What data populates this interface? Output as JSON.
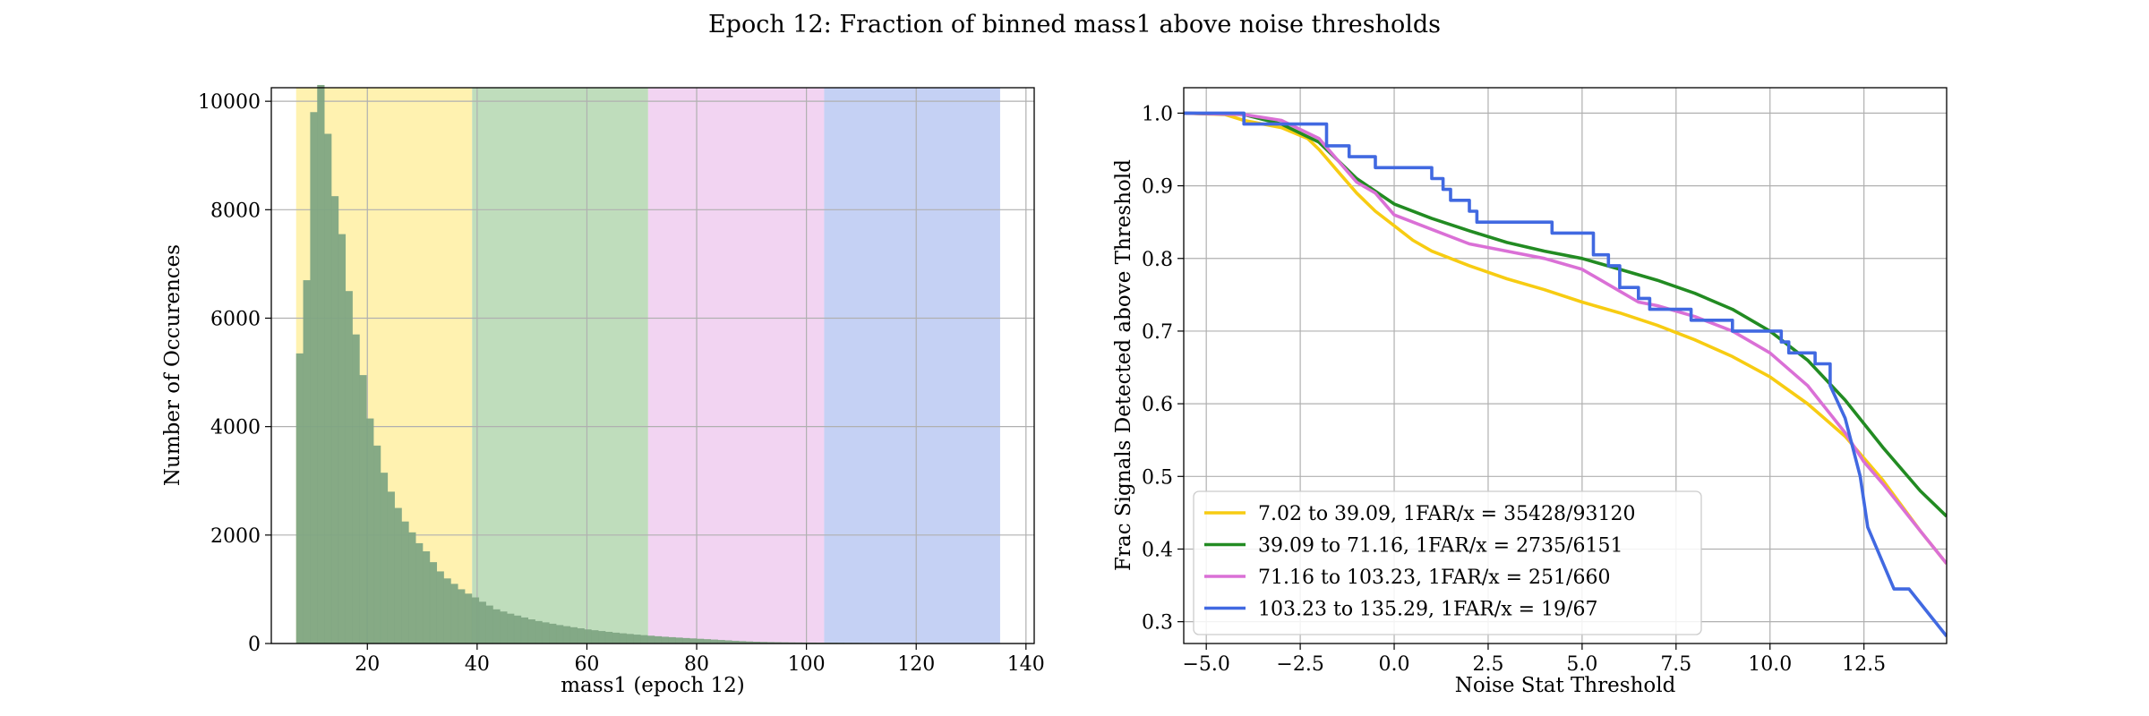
{
  "figure": {
    "title": "Epoch 12: Fraction of binned mass1 above noise thresholds"
  },
  "chart_data": [
    {
      "type": "bar",
      "subtype": "histogram",
      "xlabel": "mass1 (epoch 12)",
      "ylabel": "Number of Occurences",
      "xlim": [
        2.5,
        141.5
      ],
      "ylim": [
        0,
        10250
      ],
      "xticks": [
        20,
        40,
        60,
        80,
        100,
        120,
        140
      ],
      "yticks": [
        0,
        2000,
        4000,
        6000,
        8000,
        10000
      ],
      "grid": true,
      "bin_start": 7.02,
      "bin_width": 1.28,
      "values": [
        5350,
        6700,
        9800,
        10300,
        9400,
        8250,
        7550,
        6500,
        5700,
        4950,
        4150,
        3650,
        3150,
        2800,
        2500,
        2250,
        2050,
        1850,
        1700,
        1500,
        1330,
        1200,
        1100,
        1000,
        920,
        850,
        770,
        700,
        630,
        590,
        550,
        515,
        480,
        445,
        415,
        390,
        365,
        340,
        320,
        300,
        280,
        260,
        245,
        230,
        215,
        200,
        188,
        176,
        164,
        154,
        144,
        134,
        125,
        117,
        109,
        101,
        94,
        87,
        80,
        73,
        65,
        58,
        50,
        44,
        38,
        33,
        29,
        26,
        24,
        22,
        20,
        19,
        18,
        17,
        16,
        15,
        14,
        13,
        12,
        11,
        10,
        9,
        8,
        7,
        6,
        6,
        5,
        5,
        4,
        4,
        3,
        3,
        2,
        2,
        2,
        1,
        1,
        1,
        1,
        1
      ],
      "bands": [
        {
          "from": 7.02,
          "to": 39.09,
          "color": "#fff2b0"
        },
        {
          "from": 39.09,
          "to": 71.16,
          "color": "#bfddbc"
        },
        {
          "from": 71.16,
          "to": 103.23,
          "color": "#f2d4f2"
        },
        {
          "from": 103.23,
          "to": 135.29,
          "color": "#c5d1f4"
        }
      ],
      "bar_color": "#80a583"
    },
    {
      "type": "line",
      "xlabel": "Noise Stat Threshold",
      "ylabel": "Frac Signals Detected above Threshold",
      "xlim": [
        -5.6,
        14.7
      ],
      "ylim": [
        0.27,
        1.035
      ],
      "xticks": [
        -5.0,
        -2.5,
        0.0,
        2.5,
        5.0,
        7.5,
        10.0,
        12.5
      ],
      "yticks": [
        0.3,
        0.4,
        0.5,
        0.6,
        0.7,
        0.8,
        0.9,
        1.0
      ],
      "grid": true,
      "legend_position": "lower-left",
      "series": [
        {
          "name": "7.02 to 39.09, 1FAR/x = 35428/93120",
          "color": "#f7cc12",
          "step": false,
          "points": [
            [
              -5.6,
              1.0
            ],
            [
              -4.5,
              0.998
            ],
            [
              -4.0,
              0.99
            ],
            [
              -3.0,
              0.98
            ],
            [
              -2.3,
              0.965
            ],
            [
              -2.0,
              0.95
            ],
            [
              -1.5,
              0.92
            ],
            [
              -1.0,
              0.89
            ],
            [
              -0.5,
              0.865
            ],
            [
              0.0,
              0.845
            ],
            [
              0.5,
              0.825
            ],
            [
              1.0,
              0.81
            ],
            [
              2.0,
              0.79
            ],
            [
              3.0,
              0.772
            ],
            [
              4.0,
              0.757
            ],
            [
              5.0,
              0.74
            ],
            [
              6.0,
              0.725
            ],
            [
              7.0,
              0.708
            ],
            [
              8.0,
              0.688
            ],
            [
              9.0,
              0.665
            ],
            [
              10.0,
              0.637
            ],
            [
              11.0,
              0.6
            ],
            [
              12.0,
              0.555
            ],
            [
              13.0,
              0.495
            ],
            [
              14.0,
              0.425
            ],
            [
              14.7,
              0.38
            ]
          ]
        },
        {
          "name": "39.09 to 71.16, 1FAR/x = 2735/6151",
          "color": "#228b22",
          "step": false,
          "points": [
            [
              -5.6,
              1.0
            ],
            [
              -4.0,
              0.998
            ],
            [
              -3.0,
              0.985
            ],
            [
              -2.0,
              0.96
            ],
            [
              -1.5,
              0.935
            ],
            [
              -1.0,
              0.91
            ],
            [
              0.0,
              0.875
            ],
            [
              1.0,
              0.855
            ],
            [
              2.0,
              0.838
            ],
            [
              3.0,
              0.822
            ],
            [
              4.0,
              0.81
            ],
            [
              5.0,
              0.8
            ],
            [
              6.0,
              0.785
            ],
            [
              7.0,
              0.77
            ],
            [
              8.0,
              0.752
            ],
            [
              9.0,
              0.73
            ],
            [
              10.0,
              0.7
            ],
            [
              11.0,
              0.66
            ],
            [
              12.0,
              0.605
            ],
            [
              13.0,
              0.54
            ],
            [
              14.0,
              0.48
            ],
            [
              14.7,
              0.445
            ]
          ]
        },
        {
          "name": "71.16 to 103.23, 1FAR/x = 251/660",
          "color": "#da70d6",
          "step": false,
          "points": [
            [
              -5.6,
              1.0
            ],
            [
              -4.0,
              0.998
            ],
            [
              -3.0,
              0.99
            ],
            [
              -2.0,
              0.965
            ],
            [
              -1.5,
              0.935
            ],
            [
              -1.0,
              0.905
            ],
            [
              -0.5,
              0.89
            ],
            [
              0.0,
              0.86
            ],
            [
              1.0,
              0.84
            ],
            [
              2.0,
              0.82
            ],
            [
              3.0,
              0.81
            ],
            [
              4.0,
              0.8
            ],
            [
              5.0,
              0.785
            ],
            [
              5.5,
              0.77
            ],
            [
              6.0,
              0.755
            ],
            [
              6.5,
              0.74
            ],
            [
              7.0,
              0.735
            ],
            [
              8.0,
              0.72
            ],
            [
              9.0,
              0.7
            ],
            [
              10.0,
              0.67
            ],
            [
              11.0,
              0.625
            ],
            [
              12.0,
              0.56
            ],
            [
              12.5,
              0.52
            ],
            [
              13.0,
              0.49
            ],
            [
              14.0,
              0.425
            ],
            [
              14.7,
              0.38
            ]
          ]
        },
        {
          "name": "103.23 to 135.29, 1FAR/x = 19/67",
          "color": "#4169e1",
          "step": true,
          "points": [
            [
              -5.6,
              1.0
            ],
            [
              -4.0,
              1.0
            ],
            [
              -4.0,
              0.985
            ],
            [
              -1.8,
              0.985
            ],
            [
              -1.8,
              0.955
            ],
            [
              -1.2,
              0.955
            ],
            [
              -1.2,
              0.94
            ],
            [
              -0.5,
              0.94
            ],
            [
              -0.5,
              0.925
            ],
            [
              1.0,
              0.925
            ],
            [
              1.0,
              0.91
            ],
            [
              1.3,
              0.91
            ],
            [
              1.3,
              0.895
            ],
            [
              1.5,
              0.895
            ],
            [
              1.5,
              0.88
            ],
            [
              2.0,
              0.88
            ],
            [
              2.0,
              0.865
            ],
            [
              2.2,
              0.865
            ],
            [
              2.2,
              0.85
            ],
            [
              4.2,
              0.85
            ],
            [
              4.2,
              0.835
            ],
            [
              5.3,
              0.835
            ],
            [
              5.3,
              0.805
            ],
            [
              5.7,
              0.805
            ],
            [
              5.7,
              0.79
            ],
            [
              6.0,
              0.79
            ],
            [
              6.0,
              0.76
            ],
            [
              6.5,
              0.76
            ],
            [
              6.5,
              0.745
            ],
            [
              6.8,
              0.745
            ],
            [
              6.8,
              0.73
            ],
            [
              7.9,
              0.73
            ],
            [
              7.9,
              0.715
            ],
            [
              9.0,
              0.715
            ],
            [
              9.0,
              0.7
            ],
            [
              10.3,
              0.7
            ],
            [
              10.3,
              0.685
            ],
            [
              10.5,
              0.685
            ],
            [
              10.5,
              0.67
            ],
            [
              11.2,
              0.67
            ],
            [
              11.2,
              0.655
            ],
            [
              11.6,
              0.655
            ],
            [
              11.6,
              0.625
            ],
            [
              12.0,
              0.58
            ],
            [
              12.4,
              0.5
            ],
            [
              12.6,
              0.43
            ],
            [
              13.3,
              0.345
            ],
            [
              13.7,
              0.345
            ],
            [
              14.7,
              0.28
            ]
          ]
        }
      ]
    }
  ]
}
